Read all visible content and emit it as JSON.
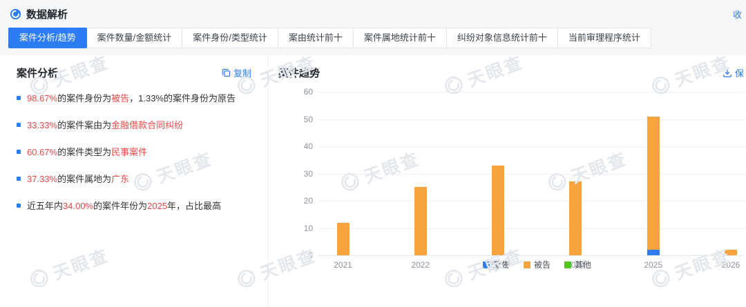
{
  "header": {
    "title": "数据解析",
    "collapse_label": "收"
  },
  "tabs": {
    "active_index": 0,
    "items": [
      {
        "key": "case-analysis-trend",
        "label": "案件分析/趋势"
      },
      {
        "key": "case-count-amount",
        "label": "案件数量/金额统计"
      },
      {
        "key": "case-identity-type",
        "label": "案件身份/类型统计"
      },
      {
        "key": "cause-top10",
        "label": "案由统计前十"
      },
      {
        "key": "case-region-top10",
        "label": "案件属地统计前十"
      },
      {
        "key": "dispute-party-top10",
        "label": "纠纷对象信息统计前十"
      },
      {
        "key": "current-procedure",
        "label": "当前审理程序统计"
      }
    ]
  },
  "analysis": {
    "title": "案件分析",
    "copy_label": "复制",
    "items": [
      {
        "segments": [
          {
            "text": "98.67%",
            "color": "red"
          },
          {
            "text": "的案件身份为",
            "color": "dark"
          },
          {
            "text": "被告",
            "color": "red"
          },
          {
            "text": "，1.33%的案件身份为原告",
            "color": "dark"
          }
        ]
      },
      {
        "segments": [
          {
            "text": "33.33%",
            "color": "red"
          },
          {
            "text": "的案件案由为",
            "color": "dark"
          },
          {
            "text": "金融借款合同纠纷",
            "color": "red"
          }
        ]
      },
      {
        "segments": [
          {
            "text": "60.67%",
            "color": "red"
          },
          {
            "text": "的案件类型为",
            "color": "dark"
          },
          {
            "text": "民事案件",
            "color": "red"
          }
        ]
      },
      {
        "segments": [
          {
            "text": "37.33%",
            "color": "red"
          },
          {
            "text": "的案件属地为",
            "color": "dark"
          },
          {
            "text": "广东",
            "color": "red"
          }
        ]
      },
      {
        "segments": [
          {
            "text": "近五年内",
            "color": "dark"
          },
          {
            "text": "34.00%",
            "color": "red"
          },
          {
            "text": "的案件年份为",
            "color": "dark"
          },
          {
            "text": "2025",
            "color": "red"
          },
          {
            "text": "年，占比最高",
            "color": "dark"
          }
        ]
      }
    ]
  },
  "chart": {
    "title": "案件趋势",
    "save_label": "保"
  },
  "chart_data": {
    "type": "bar",
    "stacked": true,
    "title": "案件趋势",
    "xlabel": "",
    "ylabel": "",
    "categories": [
      "2021",
      "2022",
      "2023",
      "2024",
      "2025",
      "2026"
    ],
    "series": [
      {
        "name": "原告",
        "color": "#2f7cf6",
        "values": [
          0,
          0,
          0,
          0,
          2,
          0
        ]
      },
      {
        "name": "被告",
        "color": "#f7a43f",
        "values": [
          12,
          25,
          33,
          27,
          49,
          2
        ]
      },
      {
        "name": "其他",
        "color": "#52c41a",
        "values": [
          0,
          0,
          0,
          0,
          0,
          0
        ]
      }
    ],
    "totals": [
      12,
      25,
      33,
      27,
      51,
      2
    ],
    "ylim": [
      0,
      60
    ],
    "ytick_step": 10,
    "grid": true,
    "legend_position": "bottom"
  },
  "watermark": {
    "text": "天眼查"
  },
  "colors": {
    "accent": "#2b7cf6",
    "red": "#f04848",
    "bar_blue": "#2f7cf6",
    "bar_orange": "#f7a43f",
    "bar_green": "#52c41a"
  }
}
